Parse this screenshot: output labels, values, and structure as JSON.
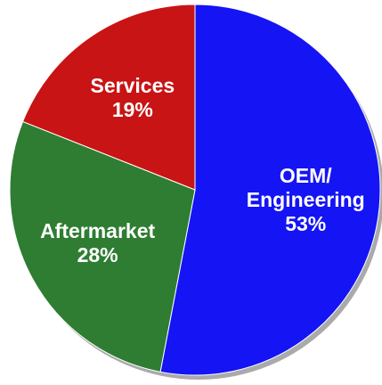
{
  "chart_data": {
    "type": "pie",
    "categories": [
      "OEM/ Engineering",
      "Aftermarket",
      "Services"
    ],
    "values": [
      53,
      28,
      19
    ],
    "value_labels": [
      "53%",
      "28%",
      "19%"
    ],
    "colors": [
      "#1414f5",
      "#2e7d32",
      "#c81414"
    ],
    "start_angle": 0,
    "direction": "clockwise"
  }
}
